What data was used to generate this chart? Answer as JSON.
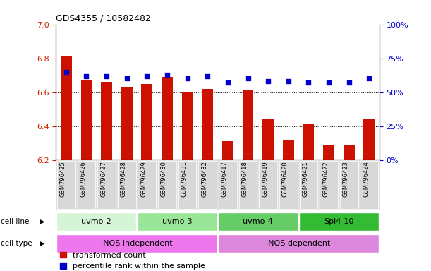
{
  "title": "GDS4355 / 10582482",
  "samples": [
    "GSM796425",
    "GSM796426",
    "GSM796427",
    "GSM796428",
    "GSM796429",
    "GSM796430",
    "GSM796431",
    "GSM796432",
    "GSM796417",
    "GSM796418",
    "GSM796419",
    "GSM796420",
    "GSM796421",
    "GSM796422",
    "GSM796423",
    "GSM796424"
  ],
  "transformed_count": [
    6.81,
    6.67,
    6.66,
    6.63,
    6.65,
    6.69,
    6.6,
    6.62,
    6.31,
    6.61,
    6.44,
    6.32,
    6.41,
    6.29,
    6.29,
    6.44
  ],
  "percentile_rank": [
    65,
    62,
    62,
    60,
    62,
    63,
    60,
    62,
    57,
    60,
    58,
    58,
    57,
    57,
    57,
    60
  ],
  "ylim_left": [
    6.2,
    7.0
  ],
  "ylim_right": [
    0,
    100
  ],
  "yticks_left": [
    6.2,
    6.4,
    6.6,
    6.8,
    7.0
  ],
  "yticks_right": [
    0,
    25,
    50,
    75,
    100
  ],
  "cell_line_groups": [
    {
      "label": "uvmo-2",
      "start": 0,
      "end": 3,
      "color": "#d6f5d6"
    },
    {
      "label": "uvmo-3",
      "start": 4,
      "end": 7,
      "color": "#99e699"
    },
    {
      "label": "uvmo-4",
      "start": 8,
      "end": 11,
      "color": "#66cc66"
    },
    {
      "label": "Spl4-10",
      "start": 12,
      "end": 15,
      "color": "#33bb33"
    }
  ],
  "cell_type_groups": [
    {
      "label": "iNOS independent",
      "start": 0,
      "end": 7,
      "color": "#ee77ee"
    },
    {
      "label": "iNOS dependent",
      "start": 8,
      "end": 15,
      "color": "#dd88dd"
    }
  ],
  "bar_color": "#cc1100",
  "dot_color": "#0000cc",
  "bar_bottom": 6.2,
  "bar_width": 0.55,
  "tick_label_color_left": "#cc2200",
  "tick_label_color_right": "#0000cc",
  "legend_items": [
    "transformed count",
    "percentile rank within the sample"
  ]
}
